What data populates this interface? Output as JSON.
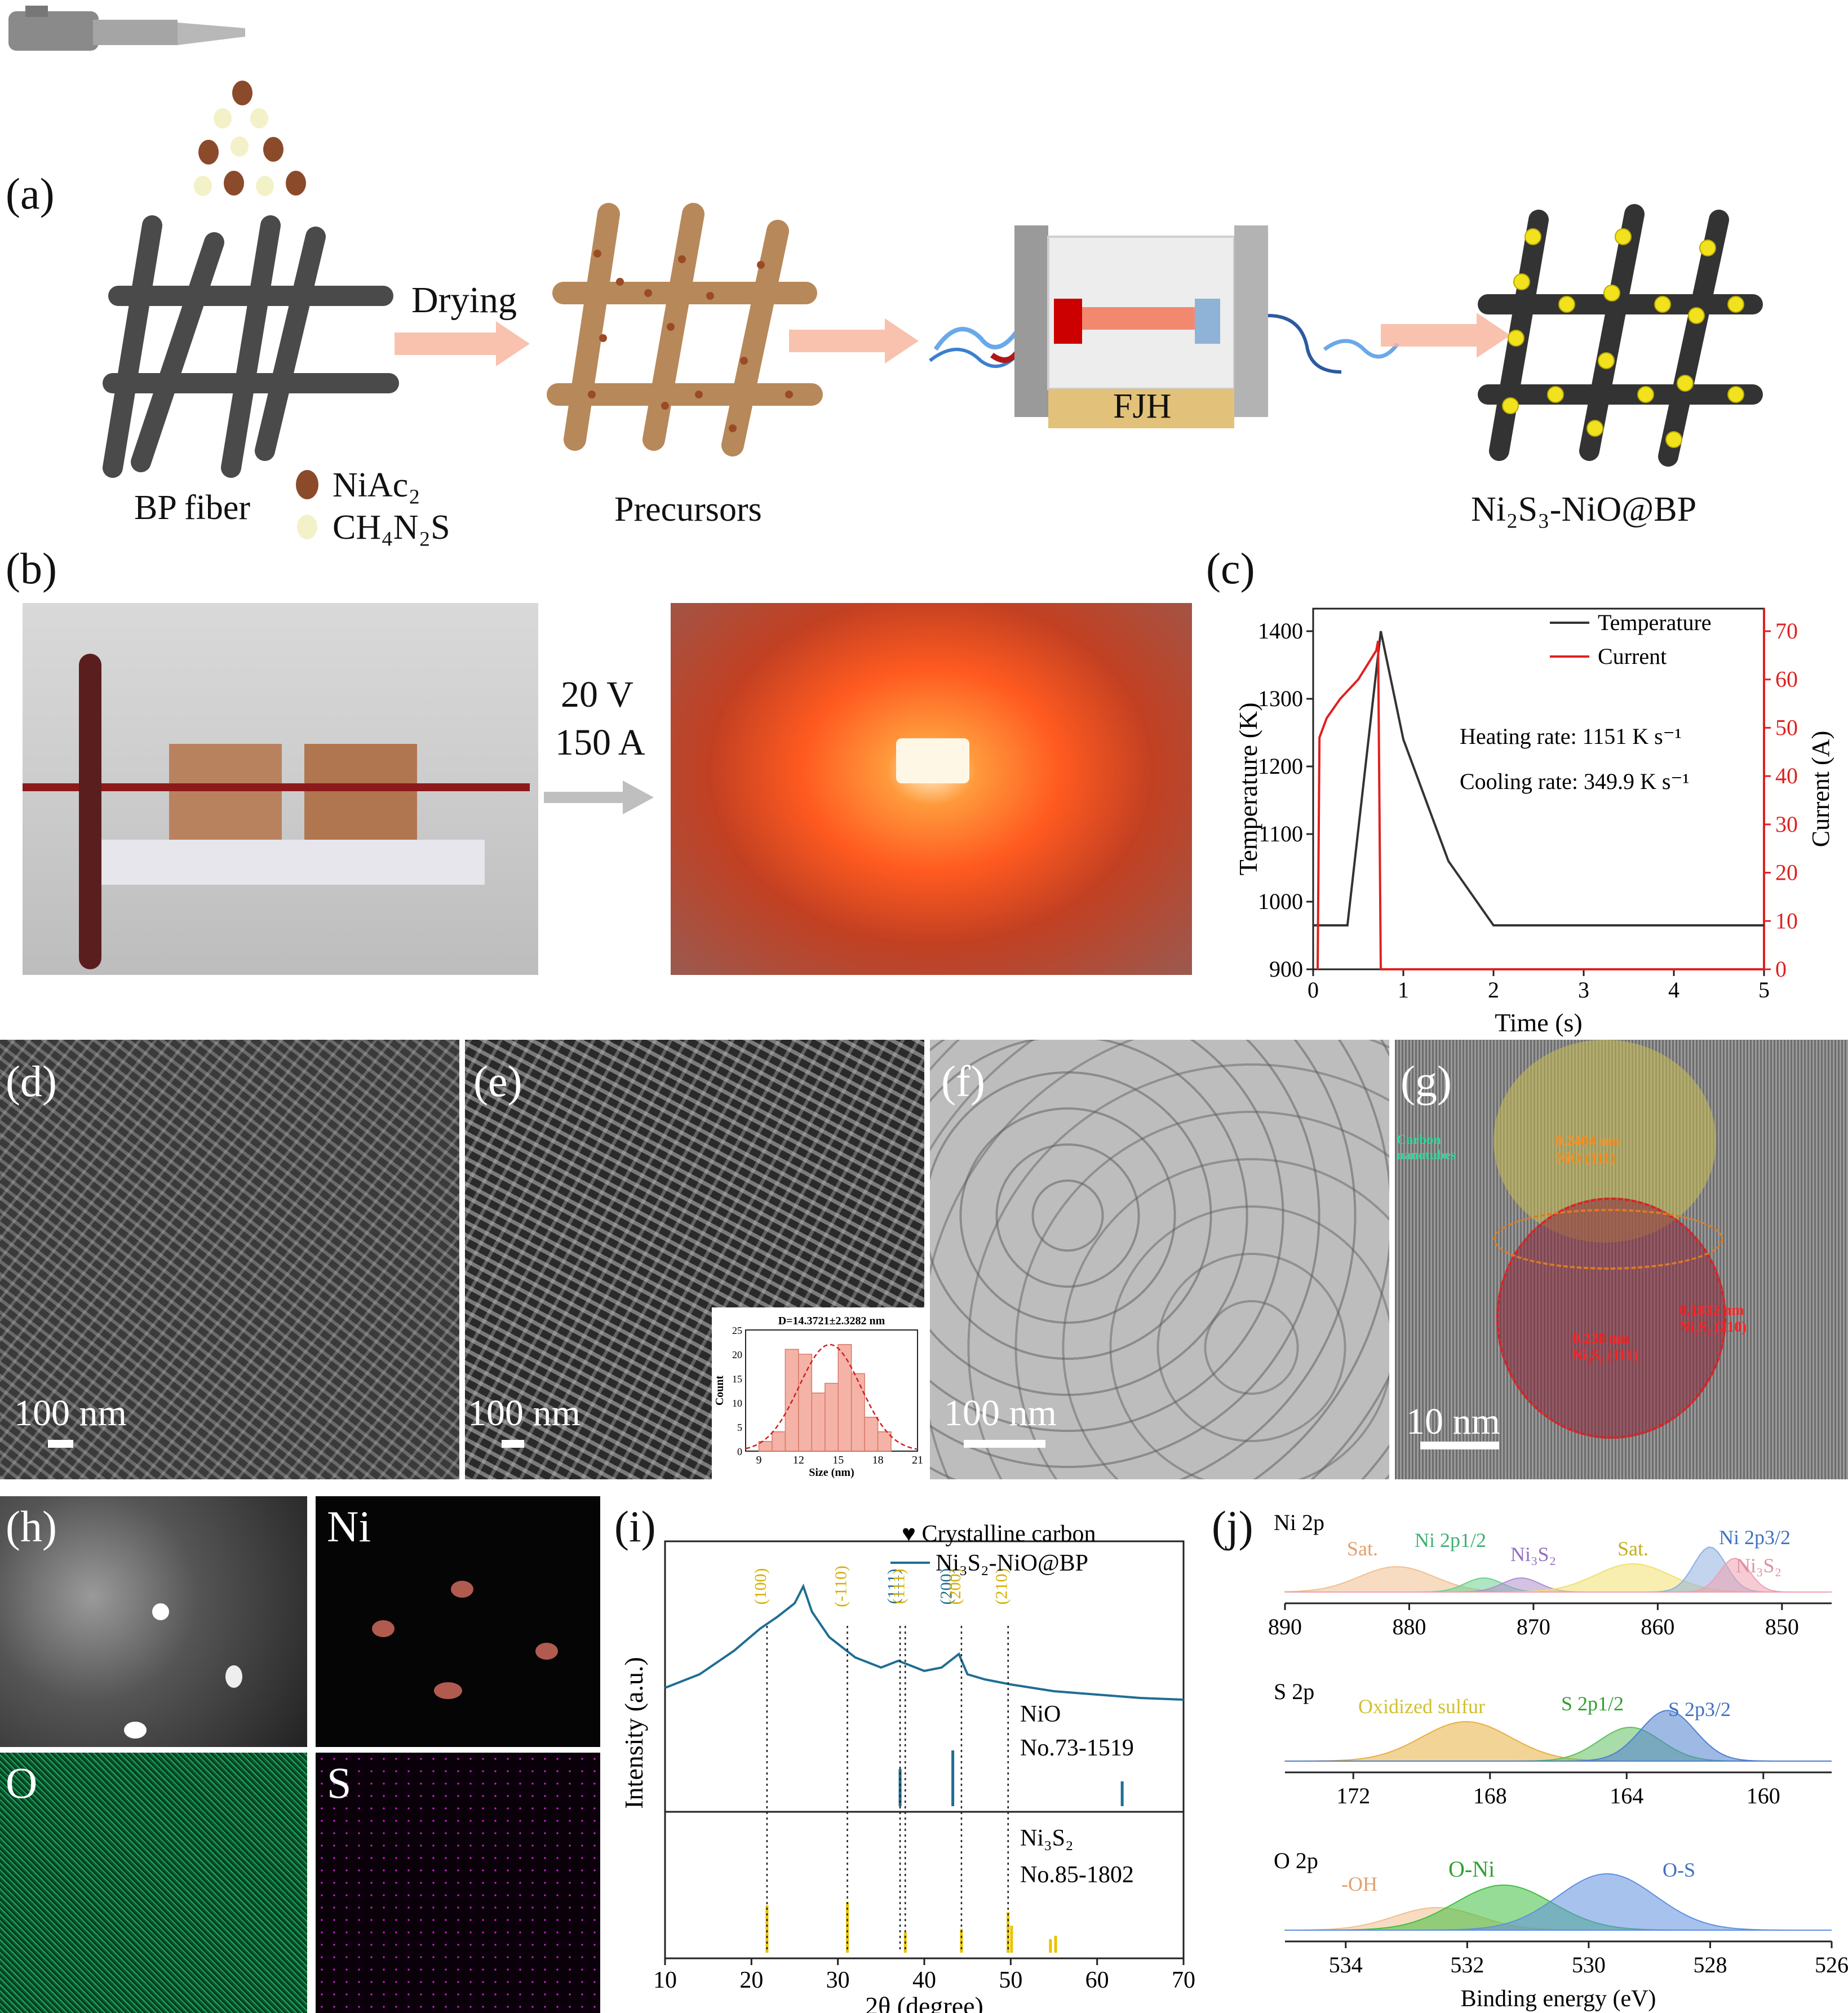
{
  "panel_a": {
    "label": "(a)",
    "bp_fiber": "BP fiber",
    "legend_niac": "NiAc₂",
    "legend_thiourea": "CH₄N₂S",
    "drying": "Drying",
    "precursors": "Precursors",
    "fjh": "FJH",
    "product": "Ni₂S₃-NiO@BP"
  },
  "panel_b": {
    "label": "(b)",
    "voltage": "20 V",
    "current": "150 A"
  },
  "panel_c": {
    "label": "(c)",
    "legend_temperature": "Temperature",
    "legend_current": "Current",
    "heating_rate": "Heating rate: 1151 K s⁻¹",
    "cooling_rate": "Cooling rate: 349.9 K s⁻¹",
    "xlabel": "Time (s)",
    "ylabel_left": "Temperature (K)",
    "ylabel_right": "Current (A)",
    "colors": {
      "temperature": "#333333",
      "current": "#e02020"
    }
  },
  "panels_sem_tem": {
    "d": {
      "label": "(d)",
      "scale": "100 nm"
    },
    "e": {
      "label": "(e)",
      "scale": "100 nm"
    },
    "f": {
      "label": "(f)",
      "scale": "100 nm"
    },
    "g": {
      "label": "(g)",
      "scale": "10 nm",
      "carbon": "Carbon nanotubes",
      "nio": "0.2404 nm NiO (111)",
      "nis_210": "0.1832 nm Ni₃S₂ (210)",
      "nis_111": "0.238 nm Ni₃S₂ (111)"
    }
  },
  "histogram": {
    "title": "D=14.3721±2.3282 nm",
    "xlabel": "Size (nm)",
    "ylabel": "Count",
    "xticks": [
      "9",
      "12",
      "15",
      "18",
      "21"
    ],
    "yticks": [
      "0",
      "5",
      "10",
      "15",
      "20",
      "25"
    ]
  },
  "panel_h": {
    "label": "(h)",
    "ni": "Ni",
    "o": "O",
    "s": "S"
  },
  "panel_i": {
    "label": "(i)",
    "legend_carbon": "♥ Crystalline carbon",
    "legend_sample": "Ni₃S₂-NiO@BP",
    "ylabel": "Intensity (a.u.)",
    "xlabel": "2θ (degree)",
    "nio_ref": "NiO",
    "nio_no": "No.73-1519",
    "nis_ref": "Ni₃S₂",
    "nis_no": "No.85-1802",
    "peak_labels": [
      "(100)",
      "(-110)",
      "(111)",
      "(111)",
      "(200)",
      "(200)",
      "(210)"
    ],
    "colors": {
      "pattern": "#1f6e93",
      "nio": "#1f6e93",
      "nis": "#e8c400"
    }
  },
  "panel_j": {
    "label": "(j)",
    "ni": {
      "title": "Ni 2p",
      "sat1": "Sat.",
      "ni2p12": "Ni 2p1/2",
      "ni3s2a": "Ni₃S₂",
      "sat2": "Sat.",
      "ni2p32": "Ni 2p3/2",
      "ni3s2b": "Ni₃S₂",
      "xticks": [
        "890",
        "880",
        "870",
        "860",
        "850"
      ]
    },
    "s": {
      "title": "S 2p",
      "oxs": "Oxidized sulfur",
      "s12": "S 2p1/2",
      "s32": "S 2p3/2",
      "xticks": [
        "172",
        "168",
        "164",
        "160"
      ]
    },
    "o": {
      "title": "O 2p",
      "oh": "-OH",
      "oni": "O-Ni",
      "os": "O-S",
      "xticks": [
        "534",
        "532",
        "530",
        "528",
        "526"
      ]
    },
    "xlabel": "Binding energy (eV)"
  },
  "chart_data": [
    {
      "type": "line",
      "title": "",
      "xlabel": "Time (s)",
      "ylabel": "Temperature (K)",
      "y2label": "Current (A)",
      "xlim": [
        0,
        5
      ],
      "ylim": [
        900,
        1400
      ],
      "y2lim": [
        0,
        70
      ],
      "xticks": [
        0,
        1,
        2,
        3,
        4,
        5
      ],
      "yticks": [
        900,
        1000,
        1100,
        1200,
        1300,
        1400
      ],
      "y2ticks": [
        0,
        10,
        20,
        30,
        40,
        50,
        60,
        70
      ],
      "series": [
        {
          "name": "Temperature",
          "axis": "left",
          "x": [
            0,
            0.38,
            0.75,
            1.0,
            1.5,
            2.0,
            3.0,
            4.0,
            5.0
          ],
          "y": [
            965,
            965,
            1400,
            1240,
            1060,
            965,
            965,
            965,
            965
          ]
        },
        {
          "name": "Current",
          "axis": "right",
          "x": [
            0.05,
            0.07,
            0.15,
            0.3,
            0.5,
            0.7,
            0.72,
            0.75,
            1.0,
            5.0
          ],
          "y": [
            0,
            48,
            52,
            56,
            60,
            66,
            68,
            0,
            0,
            0
          ]
        }
      ]
    },
    {
      "type": "bar",
      "title": "D=14.3721±2.3282 nm",
      "xlabel": "Size (nm)",
      "ylabel": "Count",
      "xlim": [
        8,
        21
      ],
      "ylim": [
        0,
        25
      ],
      "categories": [
        "9.5",
        "10.5",
        "11.5",
        "12.5",
        "13.5",
        "14.5",
        "15.5",
        "16.5",
        "17.5",
        "18.5"
      ],
      "values": [
        2,
        4,
        21,
        20,
        12,
        14,
        22,
        16,
        7,
        4
      ]
    },
    {
      "type": "line",
      "title": "",
      "xlabel": "2θ (degree)",
      "ylabel": "Intensity (a.u.)",
      "xlim": [
        10,
        70
      ],
      "xticks": [
        10,
        20,
        30,
        40,
        50,
        60,
        70
      ],
      "series": [
        {
          "name": "Ni₃S₂-NiO@BP",
          "x": [
            10,
            14,
            18,
            21,
            23,
            25,
            26,
            27,
            29,
            32,
            35,
            37,
            40,
            42,
            44,
            45,
            47,
            50,
            55,
            60,
            65,
            70
          ],
          "y": [
            0.4,
            0.48,
            0.62,
            0.75,
            0.82,
            0.9,
            1.0,
            0.85,
            0.7,
            0.58,
            0.52,
            0.56,
            0.5,
            0.52,
            0.6,
            0.48,
            0.45,
            0.42,
            0.38,
            0.36,
            0.34,
            0.33
          ]
        }
      ],
      "reference_nio": {
        "x": [
          37.2,
          43.3,
          62.9
        ],
        "y": [
          0.6,
          0.9,
          0.4
        ]
      },
      "reference_ni3s2": {
        "x": [
          21.8,
          31.1,
          37.8,
          44.3,
          49.7,
          50.1,
          54.6,
          55.2
        ],
        "y": [
          0.7,
          0.75,
          0.3,
          0.35,
          0.6,
          0.4,
          0.2,
          0.25
        ]
      }
    }
  ]
}
